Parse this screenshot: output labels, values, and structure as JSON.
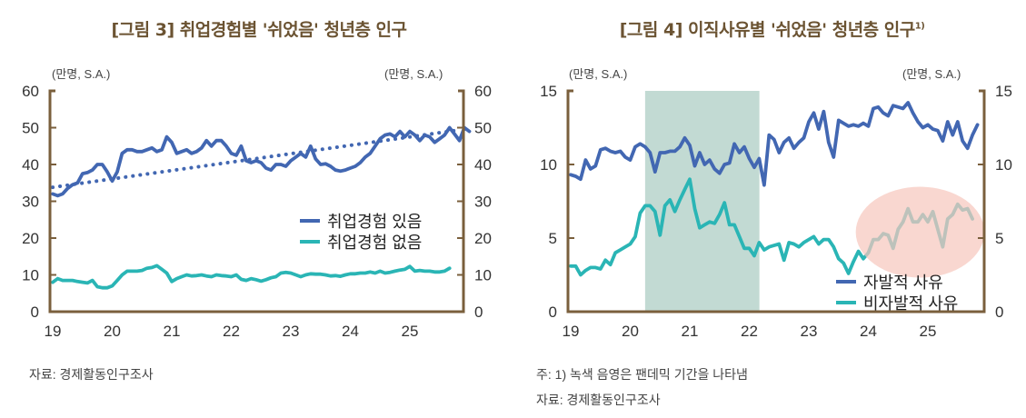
{
  "chart_data": [
    {
      "type": "line",
      "title": "[그림 3] 취업경험별 '쉬었음' 청년층 인구",
      "unit_left": "(만명, S.A.)",
      "unit_right": "(만명, S.A.)",
      "xlabel": "",
      "ylabel": "",
      "ylim": [
        0,
        60
      ],
      "yticks": [
        "0",
        "10",
        "20",
        "30",
        "40",
        "50",
        "60"
      ],
      "xticks": [
        "19",
        "20",
        "21",
        "22",
        "23",
        "24",
        "25"
      ],
      "xstart": 2019.0,
      "step_months": 1,
      "legend_position": "center-right",
      "series": [
        {
          "name": "취업경험 있음",
          "color": "#4267b2",
          "values": [
            32,
            31.5,
            32,
            33.5,
            34.5,
            35,
            37.5,
            37.8,
            38.5,
            40,
            40,
            38,
            35.5,
            38,
            43,
            44,
            44,
            43.5,
            43.5,
            44,
            44.5,
            43.5,
            44,
            47.5,
            46,
            43,
            43.5,
            44,
            43,
            43.5,
            44.5,
            46.5,
            45,
            46.5,
            46.5,
            45,
            43,
            42.5,
            45,
            41,
            40.5,
            41,
            40.5,
            39,
            38.5,
            40,
            40,
            39.5,
            41,
            42,
            43,
            42,
            45,
            41.5,
            40,
            40.2,
            39.5,
            38.5,
            38.2,
            38.5,
            39,
            39.5,
            40.5,
            42,
            43,
            45,
            47,
            48,
            48.3,
            47.5,
            49,
            47.5,
            49,
            48,
            46.5,
            48,
            47.5,
            46,
            47,
            48,
            50,
            48.3,
            46.5,
            50,
            49
          ]
        },
        {
          "name": "추세선",
          "color": "#4267b2",
          "dotted": true,
          "trend": [
            33.8,
            49.2
          ]
        },
        {
          "name": "취업경험 없음",
          "color": "#2ab5b5",
          "values": [
            8,
            9,
            8.5,
            8.5,
            8.5,
            8.2,
            8,
            7.8,
            8.5,
            6.8,
            6.5,
            6.5,
            7,
            8.5,
            10,
            11,
            11,
            11,
            11.2,
            11.8,
            12,
            12.5,
            11.5,
            10.5,
            8.2,
            9,
            9.5,
            10,
            9.7,
            9.8,
            10,
            9.7,
            9.5,
            10,
            9.8,
            9.7,
            9.5,
            10,
            8.8,
            8.5,
            9,
            8.7,
            8.3,
            8.7,
            9.2,
            9.5,
            10.5,
            10.7,
            10.5,
            10,
            9.5,
            10,
            10.3,
            10.2,
            10.2,
            10,
            9.7,
            9.8,
            9.6,
            10,
            10.3,
            10.3,
            10.5,
            10.5,
            10.8,
            10.5,
            11,
            10.5,
            10.7,
            11,
            11.3,
            11.5,
            12.3,
            11,
            11.2,
            11,
            11,
            10.8,
            10.8,
            11,
            11.8
          ]
        }
      ]
    },
    {
      "type": "line",
      "title": "[그림 4] 이직사유별 '쉬었음' 청년층 인구",
      "title_sup": "1)",
      "unit_left": "(만명, S.A.)",
      "unit_right": "(만명, S.A.)",
      "xlabel": "",
      "ylabel": "",
      "ylim": [
        0,
        15
      ],
      "yticks": [
        "0",
        "5",
        "10",
        "15"
      ],
      "xticks": [
        "19",
        "20",
        "21",
        "22",
        "23",
        "24",
        "25"
      ],
      "xstart": 2019.0,
      "step_months": 1,
      "shaded_period": [
        2020.25,
        2022.17
      ],
      "shade_color": "#c2dad3",
      "highlight_period": [
        2023.85,
        2025.95
      ],
      "highlight_color": "#f7c8be",
      "legend_position": "bottom-right",
      "series": [
        {
          "name": "자발적 사유",
          "color": "#4267b2",
          "values": [
            9.3,
            9.2,
            9,
            10.3,
            9.7,
            9.9,
            11,
            11.1,
            10.9,
            10.8,
            10.9,
            10.5,
            10.3,
            11.2,
            11.4,
            11.2,
            10.8,
            9.5,
            10.8,
            10.8,
            10.9,
            10.9,
            11.2,
            11.8,
            11.3,
            9.9,
            10.8,
            10,
            10.3,
            9.7,
            9.4,
            10,
            10.1,
            11.4,
            10.8,
            11.2,
            10.4,
            9.8,
            10.4,
            8.6,
            12,
            11.7,
            10.8,
            11.5,
            11.8,
            11.1,
            11.5,
            11.8,
            12.9,
            13.5,
            12.4,
            13.6,
            11.5,
            10.5,
            13,
            12.8,
            12.6,
            12.7,
            12.6,
            12.8,
            12.6,
            13.8,
            13.9,
            13.5,
            13.3,
            14,
            13.9,
            13.8,
            14.2,
            13.5,
            12.9,
            12.5,
            12.7,
            12.4,
            12.3,
            11.6,
            12.9,
            12,
            12.9,
            11.6,
            11.1,
            12,
            12.7
          ]
        },
        {
          "name": "비자발적 사유",
          "color": "#2ab5b5",
          "values": [
            3.1,
            3.1,
            2.5,
            2.8,
            3.0,
            3.0,
            2.9,
            3.5,
            3.2,
            4.0,
            4.2,
            4.4,
            4.6,
            5.1,
            6.7,
            7.2,
            7.2,
            6.8,
            5.2,
            7.2,
            7.6,
            6.8,
            7.6,
            8.3,
            9.0,
            7.0,
            5.7,
            5.9,
            6.1,
            6.0,
            6.6,
            7.4,
            5.9,
            5.9,
            5.1,
            4.3,
            4.3,
            3.8,
            4.7,
            4.2,
            4.4,
            4.5,
            4.6,
            3.5,
            4.7,
            4.6,
            4.4,
            4.7,
            4.9,
            5.1,
            4.6,
            4.9,
            4.9,
            4.4,
            3.6,
            3.3,
            2.6,
            3.4,
            4.1,
            3.6,
            4.0,
            4.9,
            4.9,
            5.3,
            5.2,
            4.3,
            5.6,
            6.1,
            7.0,
            6.1,
            6.1,
            6.6,
            6.1,
            6.8,
            5.6,
            4.4,
            6.3,
            6.6,
            7.3,
            6.9,
            7.0,
            6.3
          ]
        }
      ]
    }
  ],
  "notes": {
    "left_source": "자료: 경제활동인구조사",
    "right_note": "주: 1) 녹색 음영은 팬데믹 기간을 나타냄",
    "right_source": "자료: 경제활동인구조사"
  }
}
